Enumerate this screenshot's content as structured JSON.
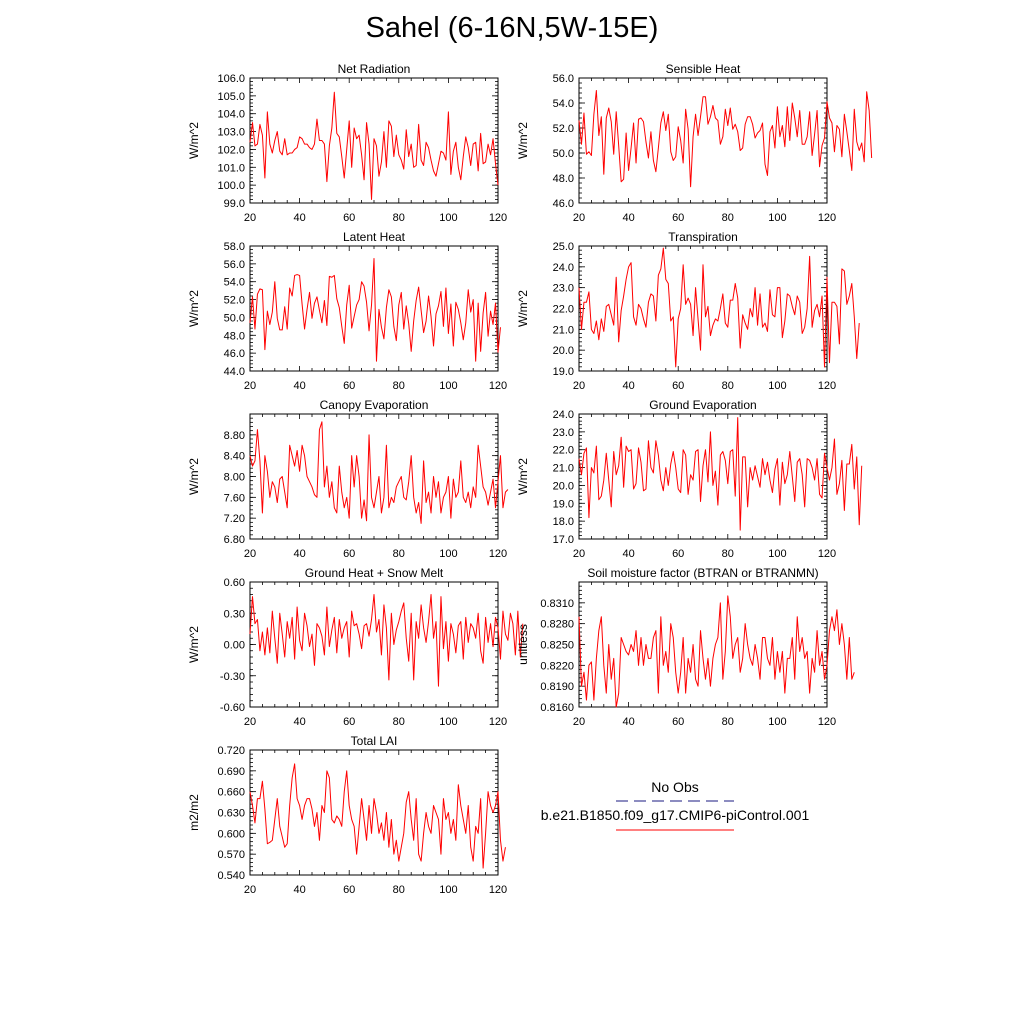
{
  "title": "Sahel (6-16N,5W-15E)",
  "legend": {
    "obs_label": "No Obs",
    "obs_color": "#1a1a80",
    "model_label": "b.e21.B1850.f09_g17.CMIP6-piControl.001",
    "model_color": "#ff0000"
  },
  "line_color": "#ff0000",
  "chart_data": [
    {
      "type": "line",
      "title": "Net Radiation",
      "ylabel": "W/m^2",
      "xlim": [
        20,
        120
      ],
      "ylim": [
        99.0,
        106.0
      ],
      "xticks": [
        20,
        40,
        60,
        80,
        100,
        120
      ],
      "yticks": [
        "99.0",
        "100.0",
        "101.0",
        "102.0",
        "103.0",
        "104.0",
        "105.0",
        "106.0"
      ],
      "x_start": 20,
      "values": [
        102.4,
        103.5,
        102.2,
        102.3,
        103.4,
        102.8,
        100.4,
        104.1,
        102.3,
        101.8,
        102.5,
        103.0,
        101.9,
        101.7,
        102.6,
        101.7,
        101.8,
        101.8,
        102.0,
        102.1,
        102.7,
        102.6,
        102.3,
        102.3,
        102.1,
        102.0,
        102.3,
        103.7,
        102.5,
        102.5,
        102.3,
        100.2,
        102.2,
        103.2,
        105.2,
        102.9,
        102.7,
        101.6,
        100.4,
        102.0,
        103.6,
        101.0,
        103.2,
        102.6,
        102.8,
        101.7,
        100.3,
        103.5,
        102.3,
        99.2,
        102.6,
        102.2,
        100.5,
        101.3,
        103.0,
        101.0,
        103.6,
        103.3,
        101.6,
        102.8,
        101.7,
        101.4,
        100.9,
        103.1,
        101.6,
        102.3,
        101.0,
        101.1,
        103.4,
        101.4,
        101.1,
        102.4,
        102.1,
        101.4,
        100.8,
        100.5,
        101.2,
        101.9,
        101.8,
        101.4,
        104.1,
        100.6,
        101.9,
        102.4,
        101.0,
        100.3,
        101.6,
        102.7,
        102.1,
        101.1,
        102.3,
        102.4,
        100.8,
        102.9,
        101.2,
        101.3,
        102.3,
        101.7,
        102.6,
        101.2,
        100.0
      ]
    },
    {
      "type": "line",
      "title": "Sensible Heat",
      "ylabel": "W/m^2",
      "xlim": [
        20,
        120
      ],
      "ylim": [
        46.0,
        56.0
      ],
      "xticks": [
        20,
        40,
        60,
        80,
        100,
        120
      ],
      "yticks": [
        "46.0",
        "48.0",
        "50.0",
        "52.0",
        "54.0",
        "56.0"
      ],
      "x_start": 20,
      "values": [
        52.6,
        50.7,
        53.2,
        49.9,
        50.1,
        49.8,
        53.1,
        55.0,
        51.4,
        52.9,
        48.3,
        52.8,
        53.6,
        52.5,
        49.9,
        53.3,
        50.6,
        47.7,
        47.9,
        51.6,
        48.6,
        50.4,
        52.4,
        49.2,
        52.7,
        52.8,
        52.5,
        50.9,
        49.6,
        51.7,
        49.4,
        48.5,
        50.4,
        52.4,
        53.3,
        51.8,
        53.1,
        50.1,
        49.4,
        49.7,
        52.1,
        51.0,
        49.2,
        53.5,
        51.9,
        47.3,
        51.3,
        53.1,
        51.4,
        52.9,
        54.5,
        54.5,
        52.3,
        52.9,
        53.8,
        52.8,
        52.6,
        50.7,
        51.3,
        53.5,
        52.2,
        53.6,
        51.9,
        52.3,
        51.7,
        50.2,
        50.4,
        52.3,
        52.9,
        52.9,
        52.3,
        51.2,
        51.6,
        51.8,
        52.4,
        49.1,
        48.2,
        51.7,
        52.2,
        50.4,
        53.7,
        51.3,
        52.2,
        50.5,
        53.7,
        51.0,
        54.0,
        52.8,
        51.3,
        53.4,
        50.7,
        50.7,
        51.3,
        53.3,
        49.8,
        51.5,
        53.4,
        48.9,
        50.6,
        51.2,
        54.1,
        52.8,
        52.4,
        50.1,
        52.2,
        51.9,
        49.7,
        53.1,
        51.7,
        50.2,
        48.6,
        53.5,
        50.9,
        50.2,
        50.8,
        49.3,
        54.9,
        53.4,
        49.6
      ]
    },
    {
      "type": "line",
      "title": "Latent Heat",
      "ylabel": "W/m^2",
      "xlim": [
        20,
        120
      ],
      "ylim": [
        44.0,
        58.0
      ],
      "xticks": [
        20,
        40,
        60,
        80,
        100,
        120
      ],
      "yticks": [
        "44.0",
        "46.0",
        "48.0",
        "50.0",
        "52.0",
        "54.0",
        "56.0",
        "58.0"
      ],
      "x_start": 20,
      "values": [
        49.4,
        52.3,
        48.7,
        52.6,
        53.2,
        53.1,
        46.4,
        50.7,
        49.2,
        50.6,
        54.0,
        49.9,
        48.6,
        48.6,
        51.2,
        48.7,
        53.3,
        52.4,
        54.7,
        54.8,
        54.7,
        51.5,
        48.7,
        50.9,
        52.8,
        49.9,
        51.6,
        52.3,
        50.8,
        49.4,
        51.9,
        49.1,
        54.6,
        54.5,
        54.7,
        52.1,
        51.1,
        49.0,
        47.1,
        51.4,
        53.6,
        48.8,
        50.1,
        51.4,
        52.0,
        54.0,
        53.5,
        51.7,
        48.5,
        51.4,
        56.6,
        45.1,
        50.9,
        48.9,
        47.6,
        51.1,
        53.1,
        52.3,
        49.0,
        47.4,
        51.4,
        52.8,
        48.7,
        51.3,
        49.3,
        46.2,
        49.6,
        51.9,
        53.4,
        50.8,
        48.3,
        49.6,
        52.4,
        50.1,
        46.8,
        50.4,
        51.3,
        52.9,
        49.0,
        53.3,
        48.2,
        51.5,
        46.8,
        51.7,
        50.9,
        49.4,
        47.5,
        49.4,
        53.1,
        50.6,
        52.0,
        45.1,
        51.6,
        46.2,
        50.5,
        52.8,
        47.9,
        50.7,
        49.2,
        51.6,
        46.1,
        48.9
      ]
    },
    {
      "type": "line",
      "title": "Transpiration",
      "ylabel": "W/m^2",
      "xlim": [
        20,
        120
      ],
      "ylim": [
        19.0,
        25.0
      ],
      "xticks": [
        20,
        40,
        60,
        80,
        100,
        120
      ],
      "yticks": [
        "19.0",
        "20.0",
        "21.0",
        "22.0",
        "23.0",
        "24.0",
        "25.0"
      ],
      "x_start": 20,
      "values": [
        23.0,
        21.0,
        22.3,
        22.3,
        22.8,
        21.0,
        20.8,
        21.4,
        20.5,
        21.5,
        20.9,
        22.1,
        22.2,
        21.7,
        21.2,
        23.5,
        20.4,
        21.9,
        22.6,
        23.4,
        24.0,
        24.2,
        21.6,
        21.2,
        22.2,
        22.0,
        21.5,
        21.1,
        22.3,
        22.7,
        22.6,
        21.4,
        23.6,
        23.9,
        24.9,
        23.4,
        23.2,
        21.4,
        21.6,
        19.2,
        21.5,
        22.0,
        24.1,
        22.2,
        22.5,
        22.2,
        20.7,
        23.0,
        21.5,
        20.0,
        24.1,
        21.6,
        22.1,
        20.7,
        21.2,
        21.5,
        21.4,
        22.0,
        22.7,
        21.3,
        21.1,
        22.4,
        22.4,
        23.2,
        22.5,
        20.1,
        21.7,
        21.3,
        21.0,
        22.0,
        21.6,
        23.0,
        21.2,
        22.7,
        21.1,
        21.3,
        20.9,
        22.9,
        21.7,
        21.6,
        23.0,
        23.0,
        20.6,
        21.4,
        22.7,
        22.6,
        22.1,
        21.7,
        22.6,
        22.3,
        20.8,
        21.1,
        22.0,
        24.5,
        21.1,
        21.9,
        22.2,
        21.6,
        22.6,
        19.2,
        23.5,
        19.4,
        22.3,
        22.3,
        22.1,
        20.3,
        23.9,
        23.8,
        22.2,
        22.6,
        23.2,
        21.6,
        19.6,
        21.3
      ]
    },
    {
      "type": "line",
      "title": "Canopy Evaporation",
      "ylabel": "W/m^2",
      "xlim": [
        20,
        120
      ],
      "ylim": [
        6.8,
        9.2
      ],
      "xticks": [
        20,
        40,
        60,
        80,
        100,
        120
      ],
      "yticks": [
        "6.80",
        "7.20",
        "7.60",
        "8.00",
        "8.40",
        "8.80"
      ],
      "x_start": 20,
      "values": [
        8.4,
        8.2,
        8.3,
        8.9,
        8.3,
        7.3,
        8.4,
        8.1,
        7.6,
        7.9,
        7.8,
        7.5,
        7.95,
        8.0,
        7.7,
        7.4,
        8.6,
        8.4,
        8.2,
        8.5,
        8.1,
        8.6,
        8.4,
        8.0,
        7.9,
        7.8,
        7.65,
        7.6,
        8.9,
        9.05,
        7.8,
        8.2,
        7.6,
        7.9,
        7.4,
        7.3,
        8.2,
        7.7,
        7.4,
        7.6,
        7.2,
        8.4,
        7.8,
        8.4,
        8.0,
        7.2,
        7.55,
        7.15,
        8.8,
        7.6,
        7.4,
        7.7,
        8.0,
        7.3,
        7.6,
        8.6,
        7.4,
        7.6,
        7.5,
        7.8,
        7.9,
        8.0,
        7.6,
        7.55,
        7.9,
        8.4,
        7.6,
        7.3,
        7.5,
        7.1,
        8.3,
        7.5,
        7.7,
        7.3,
        8.0,
        7.6,
        7.9,
        7.3,
        7.6,
        7.7,
        8.0,
        7.2,
        7.95,
        7.6,
        7.7,
        8.3,
        7.6,
        7.5,
        7.7,
        7.4,
        7.8,
        7.6,
        8.6,
        8.2,
        7.8,
        7.7,
        7.45,
        7.7,
        7.95,
        7.4,
        7.9,
        8.4,
        7.4,
        7.7,
        7.75
      ]
    },
    {
      "type": "line",
      "title": "Ground Evaporation",
      "ylabel": "W/m^2",
      "xlim": [
        20,
        120
      ],
      "ylim": [
        17.0,
        24.0
      ],
      "xticks": [
        20,
        40,
        60,
        80,
        100,
        120
      ],
      "yticks": [
        "17.0",
        "18.0",
        "19.0",
        "20.0",
        "21.0",
        "22.0",
        "23.0",
        "24.0"
      ],
      "x_start": 20,
      "values": [
        21.5,
        20.6,
        21.8,
        22.1,
        18.2,
        21.0,
        20.7,
        22.2,
        19.2,
        19.4,
        20.3,
        21.8,
        20.3,
        18.8,
        21.9,
        20.6,
        21.1,
        22.7,
        19.9,
        22.2,
        21.9,
        22.0,
        19.8,
        20.1,
        22.1,
        21.3,
        19.7,
        19.8,
        22.5,
        21.0,
        20.7,
        22.5,
        21.7,
        20.3,
        19.7,
        21.0,
        20.0,
        21.2,
        21.9,
        21.0,
        19.8,
        19.6,
        22.0,
        21.7,
        19.5,
        20.6,
        20.3,
        21.9,
        22.0,
        19.1,
        21.1,
        22.0,
        20.2,
        23.0,
        20.0,
        20.8,
        18.9,
        21.7,
        21.9,
        21.4,
        20.1,
        21.9,
        22.0,
        19.4,
        23.8,
        17.5,
        21.6,
        21.6,
        18.8,
        21.0,
        20.3,
        21.1,
        20.5,
        19.9,
        21.5,
        20.6,
        21.3,
        20.3,
        19.6,
        20.9,
        21.5,
        18.9,
        21.3,
        20.1,
        20.6,
        21.9,
        20.5,
        19.1,
        21.3,
        21.5,
        20.6,
        18.8,
        21.5,
        21.4,
        21.0,
        20.3,
        21.5,
        19.5,
        19.3,
        21.8,
        21.0,
        20.3,
        21.0,
        22.6,
        19.5,
        20.1,
        21.4,
        18.6,
        21.2,
        21.2,
        22.3,
        19.8,
        21.6,
        17.8,
        21.1
      ]
    },
    {
      "type": "line",
      "title": "Ground Heat + Snow Melt",
      "ylabel": "W/m^2",
      "xlim": [
        20,
        120
      ],
      "ylim": [
        -0.6,
        0.6
      ],
      "xticks": [
        20,
        40,
        60,
        80,
        100,
        120
      ],
      "yticks": [
        "-0.60",
        "-0.30",
        "0.00",
        "0.30",
        "0.60"
      ],
      "x_start": 20,
      "values": [
        0.1,
        0.46,
        0.2,
        0.24,
        -0.06,
        0.12,
        -0.1,
        0.16,
        -0.08,
        0.32,
        0.06,
        -0.18,
        0.3,
        0.1,
        -0.12,
        0.22,
        0.06,
        0.26,
        -0.14,
        0.36,
        0.04,
        -0.06,
        0.3,
        0.18,
        -0.02,
        0.1,
        -0.2,
        0.2,
        0.16,
        0.08,
        -0.1,
        0.36,
        -0.02,
        0.14,
        0.26,
        -0.08,
        0.24,
        0.06,
        0.16,
        0.22,
        -0.12,
        0.32,
        0.18,
        0.2,
        0.1,
        -0.04,
        0.18,
        0.2,
        0.08,
        0.24,
        0.48,
        0.12,
        0.24,
        -0.1,
        0.38,
        0.16,
        -0.34,
        0.3,
        0.0,
        0.14,
        0.22,
        0.32,
        0.4,
        0.06,
        -0.16,
        0.3,
        -0.34,
        0.22,
        0.06,
        0.38,
        0.16,
        0.02,
        0.22,
        0.48,
        0.06,
        0.22,
        -0.4,
        0.46,
        -0.04,
        0.22,
        -0.16,
        0.2,
        0.1,
        -0.08,
        0.18,
        0.22,
        -0.14,
        0.26,
        0.02,
        0.2,
        0.16,
        0.06,
        0.3,
        -0.06,
        -0.18,
        0.26,
        0.02,
        0.2,
        -0.02,
        0.26,
        0.16,
        -0.14,
        0.32,
        0.1,
        0.04,
        0.3,
        0.2,
        -0.1,
        0.32,
        -0.12,
        0.2
      ]
    },
    {
      "type": "line",
      "title": "Soil moisture factor (BTRAN or BTRANMN)",
      "ylabel": "unitless",
      "xlim": [
        20,
        120
      ],
      "ylim": [
        0.816,
        0.834
      ],
      "xticks": [
        20,
        40,
        60,
        80,
        100,
        120
      ],
      "yticks": [
        "0.8160",
        "0.8190",
        "0.8220",
        "0.8250",
        "0.8280",
        "0.8310"
      ],
      "x_start": 20,
      "values": [
        0.829,
        0.819,
        0.821,
        0.817,
        0.822,
        0.8225,
        0.817,
        0.823,
        0.827,
        0.829,
        0.822,
        0.818,
        0.825,
        0.82,
        0.823,
        0.816,
        0.818,
        0.826,
        0.825,
        0.824,
        0.8235,
        0.825,
        0.824,
        0.827,
        0.822,
        0.826,
        0.822,
        0.825,
        0.823,
        0.823,
        0.826,
        0.827,
        0.818,
        0.829,
        0.822,
        0.824,
        0.821,
        0.828,
        0.826,
        0.821,
        0.818,
        0.821,
        0.826,
        0.818,
        0.823,
        0.821,
        0.825,
        0.82,
        0.819,
        0.827,
        0.823,
        0.82,
        0.823,
        0.819,
        0.823,
        0.825,
        0.826,
        0.831,
        0.82,
        0.824,
        0.832,
        0.829,
        0.823,
        0.825,
        0.826,
        0.821,
        0.823,
        0.828,
        0.825,
        0.823,
        0.822,
        0.825,
        0.823,
        0.82,
        0.826,
        0.826,
        0.823,
        0.822,
        0.826,
        0.82,
        0.824,
        0.821,
        0.824,
        0.818,
        0.823,
        0.823,
        0.826,
        0.82,
        0.829,
        0.824,
        0.826,
        0.823,
        0.824,
        0.818,
        0.823,
        0.821,
        0.827,
        0.822,
        0.824,
        0.82,
        0.822,
        0.827,
        0.829,
        0.827,
        0.83,
        0.825,
        0.828,
        0.825,
        0.82,
        0.826,
        0.82,
        0.821
      ]
    },
    {
      "type": "line",
      "title": "Total LAI",
      "ylabel": "m2/m2",
      "xlim": [
        20,
        120
      ],
      "ylim": [
        0.54,
        0.72
      ],
      "xticks": [
        20,
        40,
        60,
        80,
        100,
        120
      ],
      "yticks": [
        "0.540",
        "0.570",
        "0.600",
        "0.630",
        "0.660",
        "0.690",
        "0.720"
      ],
      "x_start": 20,
      "values": [
        0.66,
        0.64,
        0.615,
        0.65,
        0.65,
        0.675,
        0.635,
        0.585,
        0.587,
        0.59,
        0.62,
        0.65,
        0.61,
        0.595,
        0.58,
        0.585,
        0.64,
        0.68,
        0.7,
        0.65,
        0.64,
        0.62,
        0.64,
        0.65,
        0.65,
        0.635,
        0.61,
        0.63,
        0.59,
        0.64,
        0.63,
        0.69,
        0.68,
        0.62,
        0.615,
        0.625,
        0.62,
        0.61,
        0.66,
        0.69,
        0.64,
        0.62,
        0.61,
        0.57,
        0.61,
        0.65,
        0.62,
        0.59,
        0.64,
        0.6,
        0.65,
        0.63,
        0.6,
        0.615,
        0.59,
        0.63,
        0.58,
        0.62,
        0.57,
        0.59,
        0.56,
        0.58,
        0.6,
        0.645,
        0.66,
        0.62,
        0.59,
        0.65,
        0.57,
        0.56,
        0.6,
        0.63,
        0.61,
        0.6,
        0.64,
        0.63,
        0.62,
        0.57,
        0.65,
        0.62,
        0.63,
        0.6,
        0.62,
        0.59,
        0.67,
        0.64,
        0.62,
        0.6,
        0.64,
        0.58,
        0.56,
        0.61,
        0.6,
        0.65,
        0.55,
        0.6,
        0.66,
        0.64,
        0.63,
        0.64,
        0.66,
        0.59,
        0.56,
        0.58
      ]
    }
  ]
}
